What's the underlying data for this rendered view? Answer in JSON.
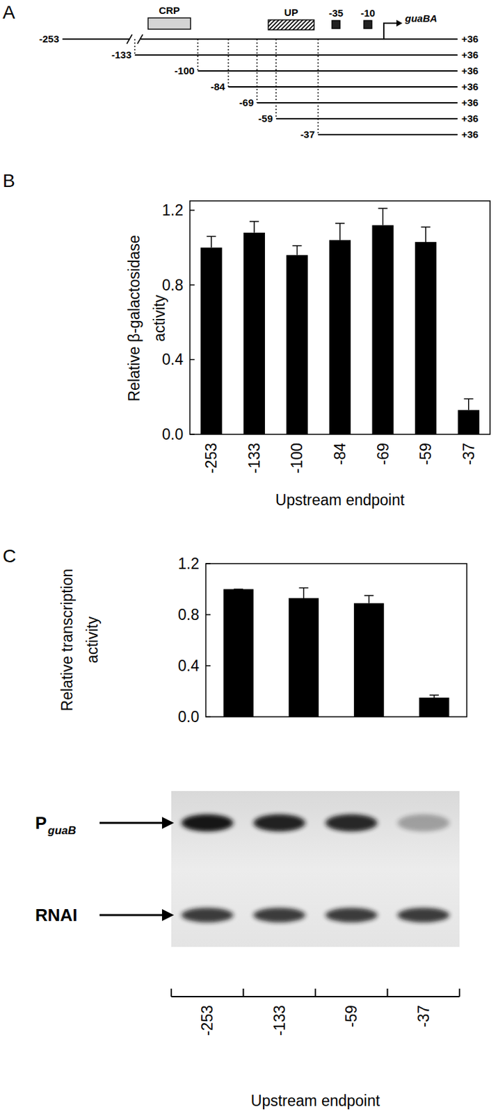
{
  "panel_labels": [
    "A",
    "B",
    "C"
  ],
  "diagram": {
    "gene": "guaBA",
    "features": [
      {
        "label": "CRP",
        "shape": "box"
      },
      {
        "label": "UP",
        "shape": "hatched"
      },
      {
        "label": "-35",
        "shape": "square"
      },
      {
        "label": "-10",
        "shape": "square"
      }
    ],
    "fragment_starts": [
      -253,
      -133,
      -100,
      -84,
      -69,
      -59,
      -37
    ],
    "fragment_end": {
      "value": 36,
      "label": "+36"
    }
  },
  "chart_data": [
    {
      "type": "bar",
      "categories": [
        "-253",
        "-133",
        "-100",
        "-84",
        "-69",
        "-59",
        "-37"
      ],
      "values": [
        1.0,
        1.08,
        0.96,
        1.04,
        1.12,
        1.03,
        0.13
      ],
      "errors": [
        0.06,
        0.06,
        0.05,
        0.09,
        0.09,
        0.08,
        0.06
      ],
      "color": "#000000",
      "ylim": [
        0,
        1.25
      ],
      "yticks": [
        {
          "value": 0,
          "label": "0.0"
        },
        0.4,
        0.8,
        1.2
      ],
      "y_label": "Relative β-galactosidase activity",
      "x_label": "Upstream endpoint"
    },
    {
      "type": "bar",
      "categories": [
        "-253",
        "-133",
        "-59",
        "-37"
      ],
      "values": [
        1.0,
        0.93,
        0.89,
        0.15
      ],
      "errors": [
        0,
        0.08,
        0.06,
        0.02
      ],
      "color": "#000000",
      "ylim": [
        0,
        1.2
      ],
      "yticks": [
        {
          "value": 0,
          "label": "0.0"
        },
        0.4,
        0.8,
        1.2
      ],
      "y_label": "Relative transcription activity",
      "x_label": "Upstream endpoint"
    }
  ],
  "gel": {
    "rows": [
      {
        "label": "P",
        "subscript": "guaB"
      },
      {
        "label": "RNAI"
      }
    ]
  }
}
